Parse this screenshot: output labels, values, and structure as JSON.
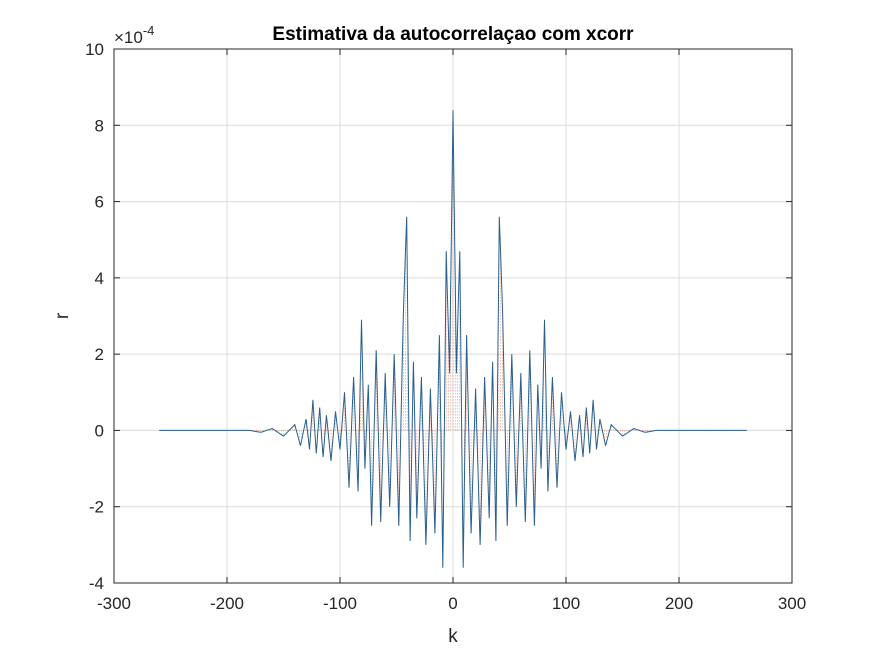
{
  "chart_data": {
    "type": "line",
    "title": "Estimativa da autocorrelaçao com xcorr",
    "xlabel": "k",
    "ylabel": "r",
    "xlim": [
      -300,
      300
    ],
    "ylim": [
      -4,
      10
    ],
    "y_exponent_label": "×10",
    "y_exponent_power": "-4",
    "xticks": [
      "-300",
      "-200",
      "-100",
      "0",
      "100",
      "200",
      "300"
    ],
    "yticks": [
      "-4",
      "-2",
      "0",
      "2",
      "4",
      "6",
      "8",
      "10"
    ],
    "grid": true,
    "legend": "none",
    "colors": {
      "signal": "#2a5f8f",
      "stems": "#e05a3a",
      "grid": "#dcdcdc",
      "axis": "#262626"
    },
    "series": [
      {
        "x": [
          -260,
          -200,
          -180,
          -170,
          -160,
          -150,
          -140,
          -135,
          -130,
          -127,
          -124,
          -121,
          -118,
          -115,
          -112,
          -108,
          -104,
          -100,
          -96,
          -92,
          -88,
          -84,
          -81,
          -78,
          -75,
          -72,
          -68,
          -64,
          -60,
          -56,
          -52,
          -48,
          -44,
          -41,
          -38,
          -35,
          -32,
          -28,
          -24,
          -20,
          -16,
          -12,
          -9,
          -6,
          -3,
          0,
          3,
          6,
          9,
          12,
          16,
          20,
          24,
          28,
          32,
          35,
          38,
          41,
          44,
          48,
          52,
          56,
          60,
          64,
          68,
          72,
          75,
          78,
          81,
          84,
          88,
          92,
          96,
          100,
          104,
          108,
          112,
          115,
          118,
          121,
          124,
          127,
          130,
          135,
          140,
          150,
          160,
          170,
          180,
          200,
          260
        ],
        "values": [
          0,
          0,
          0,
          -0.05,
          0.05,
          -0.15,
          0.15,
          -0.4,
          0.3,
          -0.5,
          0.8,
          -0.6,
          0.6,
          -0.7,
          0.4,
          -0.8,
          0.5,
          -0.5,
          1.0,
          -1.5,
          1.4,
          -1.6,
          2.9,
          -1.0,
          1.2,
          -2.5,
          2.1,
          -2.4,
          1.5,
          -2.0,
          2.0,
          -2.5,
          3.0,
          5.6,
          -2.9,
          1.8,
          -2.3,
          1.4,
          -3.0,
          1.1,
          -2.7,
          2.5,
          -3.6,
          4.7,
          1.5,
          8.4,
          1.5,
          4.7,
          -3.6,
          2.5,
          -2.7,
          1.1,
          -3.0,
          1.4,
          -2.3,
          1.8,
          -2.9,
          5.6,
          3.0,
          -2.5,
          2.0,
          -2.0,
          1.5,
          -2.4,
          2.1,
          -2.5,
          1.2,
          -1.0,
          2.9,
          -1.6,
          1.4,
          -1.5,
          1.0,
          -0.5,
          0.5,
          -0.8,
          0.4,
          -0.7,
          0.6,
          -0.6,
          0.8,
          -0.5,
          0.3,
          -0.4,
          0.15,
          -0.15,
          0.05,
          -0.05,
          0,
          0,
          0
        ]
      }
    ]
  }
}
